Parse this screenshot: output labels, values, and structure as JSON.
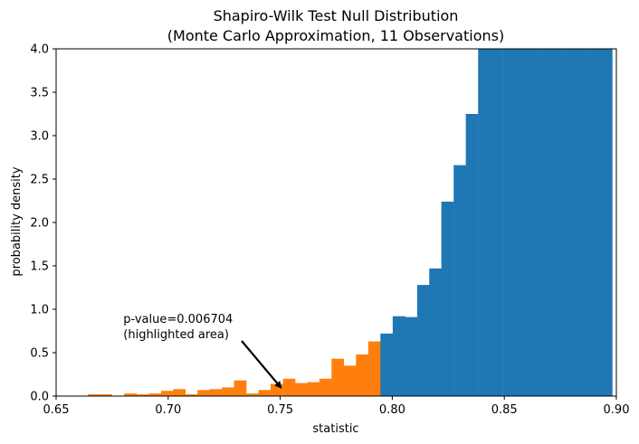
{
  "chart_data": {
    "type": "bar",
    "title": "Shapiro-Wilk Test Null Distribution",
    "subtitle": "(Monte Carlo Approximation, 11 Observations)",
    "xlabel": "statistic",
    "ylabel": "probability density",
    "xlim": [
      0.65,
      0.9
    ],
    "ylim": [
      0,
      4.0
    ],
    "xticks": [
      "0.65",
      "0.70",
      "0.75",
      "0.80",
      "0.85",
      "0.90"
    ],
    "yticks": [
      "0.0",
      "0.5",
      "1.0",
      "1.5",
      "2.0",
      "2.5",
      "3.0",
      "3.5",
      "4.0"
    ],
    "bin_width": 0.00544,
    "highlight_threshold": 0.7929,
    "bins_start": [
      0.6641,
      0.6695,
      0.675,
      0.6804,
      0.6859,
      0.6913,
      0.6968,
      0.7022,
      0.7076,
      0.7131,
      0.7185,
      0.724,
      0.7294,
      0.7349,
      0.7403,
      0.7457,
      0.7512,
      0.7566,
      0.7621,
      0.7675,
      0.7729,
      0.7784,
      0.7838,
      0.7893,
      0.7947,
      0.8002,
      0.8056,
      0.8111,
      0.8165,
      0.8219,
      0.8274,
      0.8328,
      0.8383,
      0.8437,
      0.8492,
      0.8546,
      0.86,
      0.8655,
      0.8709,
      0.8764,
      0.8818,
      0.8873,
      0.8927
    ],
    "densities": [
      0.02,
      0.02,
      0.0,
      0.03,
      0.02,
      0.03,
      0.06,
      0.08,
      0.02,
      0.07,
      0.08,
      0.1,
      0.18,
      0.03,
      0.07,
      0.14,
      0.2,
      0.15,
      0.16,
      0.2,
      0.43,
      0.35,
      0.48,
      0.63,
      0.72,
      0.92,
      0.91,
      1.28,
      1.47,
      2.24,
      2.66,
      3.25,
      4.0,
      4.0,
      4.0,
      4.0,
      4.0,
      4.0,
      4.0,
      4.0,
      4.0,
      4.0,
      4.0
    ],
    "series": [
      {
        "color": "#ff7f0e"
      },
      {
        "color": "#1f77b4"
      }
    ],
    "annotation": {
      "lines": [
        "p-value=0.006704",
        "(highlighted area)"
      ],
      "target_x": 0.751,
      "target_y": 0.08,
      "text_x": 0.68,
      "text_y": 0.7
    }
  }
}
